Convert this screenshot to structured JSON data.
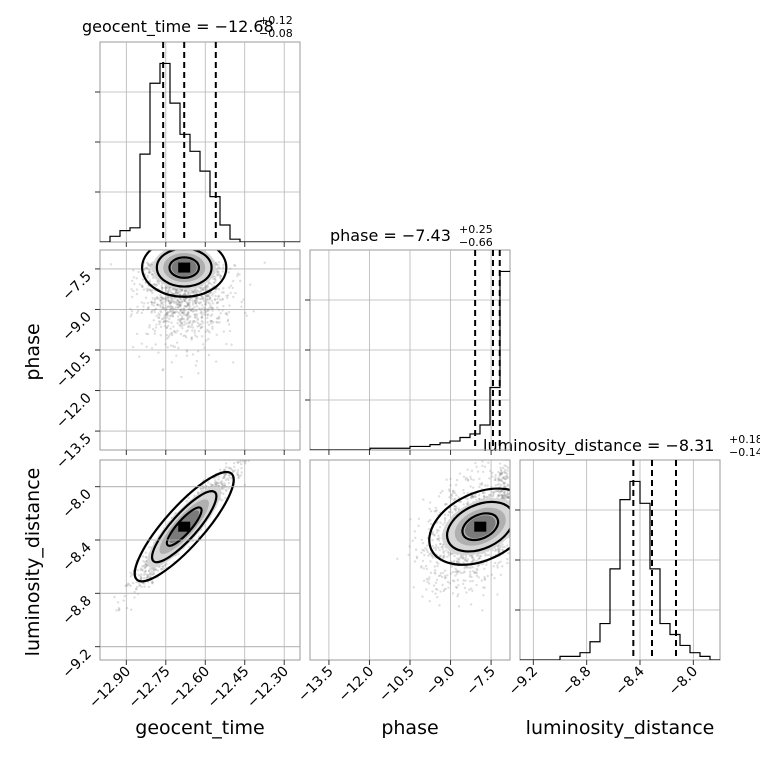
{
  "colors": {
    "frame": "#9a9a9a",
    "grid": "#b5b5b5",
    "ink": "#000000",
    "points": "#8a8a8a"
  },
  "chart_data": {
    "type": "corner",
    "parameters": [
      {
        "name": "geocent_time",
        "median": "−12.68",
        "plus": "+0.12",
        "minus": "−0.08",
        "title_prefix": "geocent_time = ",
        "range": [
          -13.0,
          -12.24
        ],
        "ticks": [
          -12.9,
          -12.75,
          -12.6,
          -12.45,
          -12.3
        ],
        "tick_labels": [
          "−12.90",
          "−12.75",
          "−12.60",
          "−12.45",
          "−12.30"
        ],
        "quantiles": [
          -12.76,
          -12.68,
          -12.56
        ],
        "hist_edges_start": -13.0,
        "hist_bin": 0.038,
        "hist_counts": [
          0,
          2,
          4,
          5,
          31,
          56,
          63,
          49,
          38,
          32,
          25,
          16,
          6,
          1,
          0,
          0,
          0,
          0,
          0,
          0
        ]
      },
      {
        "name": "phase",
        "median": "−7.43",
        "plus": "+0.25",
        "minus": "−0.66",
        "title_prefix": "phase = ",
        "range": [
          -14.2,
          -6.8
        ],
        "ticks": [
          -13.5,
          -12.0,
          -10.5,
          -9.0,
          -7.5
        ],
        "tick_labels": [
          "−13.5",
          "−12.0",
          "−10.5",
          "−9.0",
          "−7.5"
        ],
        "quantiles": [
          -8.09,
          -7.43,
          -7.18
        ],
        "hist_edges_start": -14.2,
        "hist_bin": 0.37,
        "hist_counts": [
          0,
          0,
          0,
          0,
          0,
          0,
          1,
          1,
          1,
          1,
          2,
          2,
          3,
          4,
          5,
          7,
          9,
          14,
          35,
          100
        ]
      },
      {
        "name": "luminosity_distance",
        "median": "−8.31",
        "plus": "+0.18",
        "minus": "−0.14",
        "title_prefix": "luminosity_distance = ",
        "range": [
          -9.3,
          -7.8
        ],
        "ticks": [
          -9.2,
          -8.8,
          -8.4,
          -8.0
        ],
        "tick_labels": [
          "−9.2",
          "−8.8",
          "−8.4",
          "−8.0"
        ],
        "quantiles": [
          -8.45,
          -8.31,
          -8.13
        ],
        "hist_edges_start": -9.3,
        "hist_bin": 0.075,
        "hist_counts": [
          0,
          0,
          0,
          0,
          1,
          1,
          2,
          5,
          10,
          25,
          44,
          49,
          43,
          25,
          10,
          7,
          4,
          2,
          1,
          0
        ]
      }
    ],
    "pairs": [
      {
        "x": "geocent_time",
        "y": "phase",
        "mean": [
          -12.68,
          -8.0
        ],
        "sx": 0.08,
        "sy": 0.9,
        "rho": 0.0,
        "clip_top": -7.25
      },
      {
        "x": "geocent_time",
        "y": "luminosity_distance",
        "mean": [
          -12.68,
          -8.3
        ],
        "sx": 0.09,
        "sy": 0.21,
        "rho": 0.95
      },
      {
        "x": "phase",
        "y": "luminosity_distance",
        "mean": [
          -7.9,
          -8.3
        ],
        "sx": 1.0,
        "sy": 0.21,
        "rho": 0.45,
        "clip_right": -6.85
      }
    ]
  }
}
